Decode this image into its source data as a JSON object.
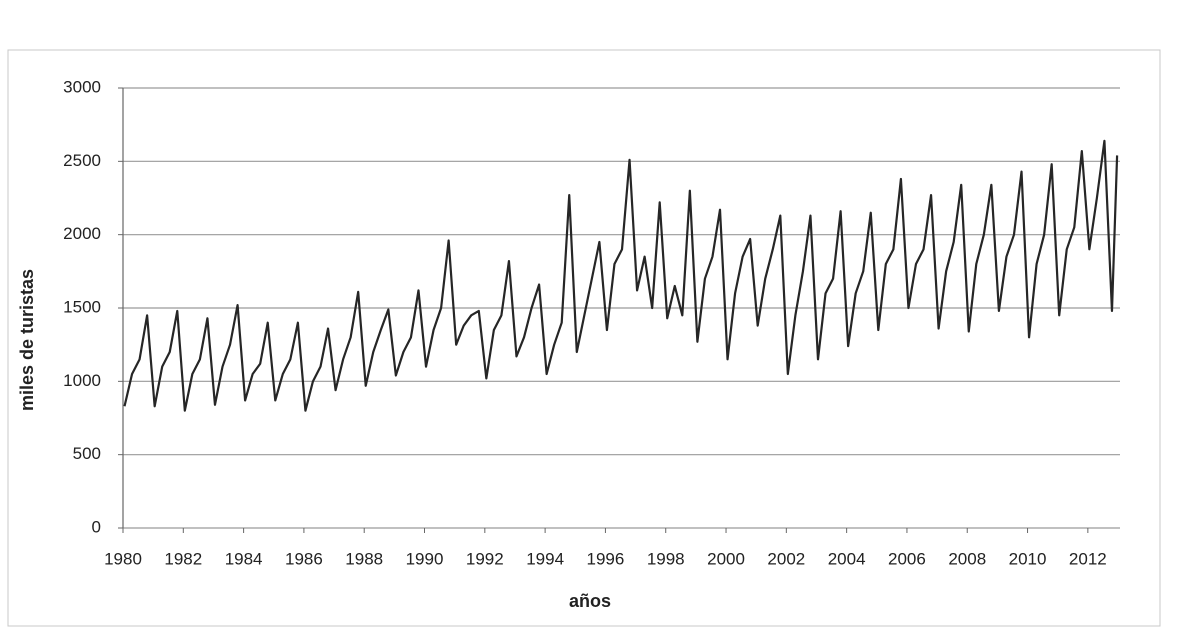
{
  "chart_data": {
    "type": "line",
    "x_label": "años",
    "y_label": "miles de turistas",
    "xlim": [
      1980,
      2013
    ],
    "xticks": [
      1980,
      1982,
      1984,
      1986,
      1988,
      1990,
      1992,
      1994,
      1996,
      1998,
      2000,
      2002,
      2004,
      2006,
      2008,
      2010,
      2012
    ],
    "ylim": [
      0,
      3000
    ],
    "yticks": [
      0,
      500,
      1000,
      1500,
      2000,
      2500,
      3000
    ],
    "grid": true,
    "series": [
      {
        "color": "#262626",
        "x": [
          1980.05,
          1980.3,
          1980.55,
          1980.8,
          1981.05,
          1981.3,
          1981.55,
          1981.8,
          1982.05,
          1982.3,
          1982.55,
          1982.8,
          1983.05,
          1983.3,
          1983.55,
          1983.8,
          1984.05,
          1984.3,
          1984.55,
          1984.8,
          1985.05,
          1985.3,
          1985.55,
          1985.8,
          1986.05,
          1986.3,
          1986.55,
          1986.8,
          1987.05,
          1987.3,
          1987.55,
          1987.8,
          1988.05,
          1988.3,
          1988.55,
          1988.8,
          1989.05,
          1989.3,
          1989.55,
          1989.8,
          1990.05,
          1990.3,
          1990.55,
          1990.8,
          1991.05,
          1991.3,
          1991.55,
          1991.8,
          1992.05,
          1992.3,
          1992.55,
          1992.8,
          1993.05,
          1993.3,
          1993.55,
          1993.8,
          1994.05,
          1994.3,
          1994.55,
          1994.8,
          1995.05,
          1995.3,
          1995.55,
          1995.8,
          1996.05,
          1996.3,
          1996.55,
          1996.8,
          1997.05,
          1997.3,
          1997.55,
          1997.8,
          1998.05,
          1998.3,
          1998.55,
          1998.8,
          1999.05,
          1999.3,
          1999.55,
          1999.8,
          2000.05,
          2000.3,
          2000.55,
          2000.8,
          2001.05,
          2001.3,
          2001.55,
          2001.8,
          2002.05,
          2002.3,
          2002.55,
          2002.8,
          2003.05,
          2003.3,
          2003.55,
          2003.8,
          2004.05,
          2004.3,
          2004.55,
          2004.8,
          2005.05,
          2005.3,
          2005.55,
          2005.8,
          2006.05,
          2006.3,
          2006.55,
          2006.8,
          2007.05,
          2007.3,
          2007.55,
          2007.8,
          2008.05,
          2008.3,
          2008.55,
          2008.8,
          2009.05,
          2009.3,
          2009.55,
          2009.8,
          2010.05,
          2010.3,
          2010.55,
          2010.8,
          2011.05,
          2011.3,
          2011.55,
          2011.8,
          2012.05,
          2012.3,
          2012.55,
          2012.8,
          2012.97
        ],
        "values": [
          830,
          1050,
          1150,
          1450,
          830,
          1100,
          1200,
          1480,
          800,
          1050,
          1150,
          1430,
          840,
          1100,
          1250,
          1520,
          870,
          1050,
          1120,
          1400,
          870,
          1050,
          1150,
          1400,
          800,
          1000,
          1100,
          1360,
          940,
          1150,
          1300,
          1610,
          970,
          1200,
          1350,
          1490,
          1040,
          1200,
          1300,
          1620,
          1100,
          1350,
          1500,
          1960,
          1250,
          1380,
          1450,
          1480,
          1020,
          1350,
          1450,
          1820,
          1170,
          1300,
          1500,
          1660,
          1050,
          1250,
          1400,
          2270,
          1200,
          1450,
          1700,
          1950,
          1350,
          1800,
          1900,
          2510,
          1620,
          1850,
          1500,
          2220,
          1430,
          1650,
          1450,
          2300,
          1270,
          1700,
          1850,
          2170,
          1150,
          1600,
          1850,
          1970,
          1380,
          1700,
          1900,
          2130,
          1050,
          1450,
          1750,
          2130,
          1150,
          1600,
          1700,
          2160,
          1240,
          1600,
          1750,
          2150,
          1350,
          1800,
          1900,
          2380,
          1500,
          1800,
          1900,
          2270,
          1360,
          1750,
          1950,
          2340,
          1340,
          1800,
          2000,
          2340,
          1480,
          1850,
          2000,
          2430,
          1300,
          1800,
          2000,
          2480,
          1450,
          1900,
          2050,
          2570,
          1900,
          2250,
          2640,
          1480,
          2540
        ]
      }
    ]
  }
}
